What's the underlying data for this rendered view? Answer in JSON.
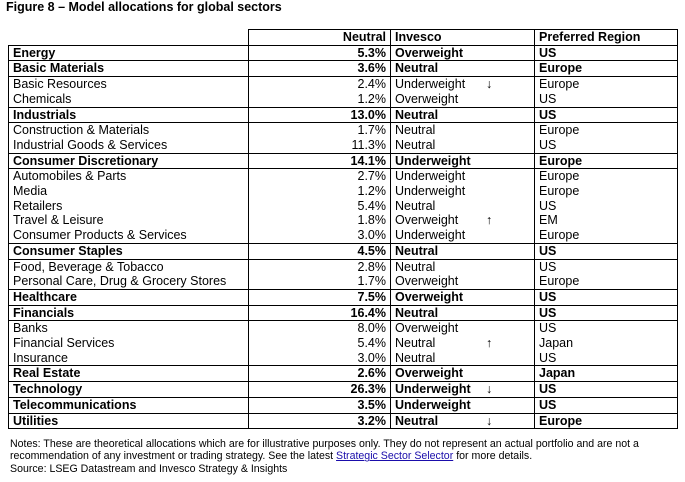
{
  "title": "Figure 8 – Model allocations for global sectors",
  "table": {
    "headers": [
      "Neutral",
      "Invesco",
      "Preferred Region"
    ],
    "rows": [
      {
        "name": "Energy",
        "neutral": "5.3%",
        "invesco": "Overweight",
        "region": "US",
        "bold": true
      },
      {
        "name": "Basic Materials",
        "neutral": "3.6%",
        "invesco": "Neutral",
        "region": "Europe",
        "bold": true
      },
      {
        "name": "Basic Resources",
        "neutral": "2.4%",
        "invesco": "Underweight",
        "arrow": "↓",
        "region": "Europe",
        "bold": false
      },
      {
        "name": "Chemicals",
        "neutral": "1.2%",
        "invesco": "Overweight",
        "region": "US",
        "bold": false
      },
      {
        "name": "Industrials",
        "neutral": "13.0%",
        "invesco": "Neutral",
        "region": "US",
        "bold": true
      },
      {
        "name": "Construction & Materials",
        "neutral": "1.7%",
        "invesco": "Neutral",
        "region": "Europe",
        "bold": false
      },
      {
        "name": "Industrial Goods & Services",
        "neutral": "11.3%",
        "invesco": "Neutral",
        "region": "US",
        "bold": false
      },
      {
        "name": "Consumer Discretionary",
        "neutral": "14.1%",
        "invesco": "Underweight",
        "region": "Europe",
        "bold": true
      },
      {
        "name": "Automobiles & Parts",
        "neutral": "2.7%",
        "invesco": "Underweight",
        "region": "Europe",
        "bold": false
      },
      {
        "name": "Media",
        "neutral": "1.2%",
        "invesco": "Underweight",
        "region": "Europe",
        "bold": false
      },
      {
        "name": "Retailers",
        "neutral": "5.4%",
        "invesco": "Neutral",
        "region": "US",
        "bold": false
      },
      {
        "name": "Travel & Leisure",
        "neutral": "1.8%",
        "invesco": "Overweight",
        "arrow": "↑",
        "region": "EM",
        "bold": false
      },
      {
        "name": "Consumer Products & Services",
        "neutral": "3.0%",
        "invesco": "Underweight",
        "region": "Europe",
        "bold": false
      },
      {
        "name": "Consumer Staples",
        "neutral": "4.5%",
        "invesco": "Neutral",
        "region": "US",
        "bold": true
      },
      {
        "name": "Food, Beverage & Tobacco",
        "neutral": "2.8%",
        "invesco": "Neutral",
        "region": "US",
        "bold": false
      },
      {
        "name": "Personal Care, Drug & Grocery Stores",
        "neutral": "1.7%",
        "invesco": "Overweight",
        "region": "Europe",
        "bold": false
      },
      {
        "name": "Healthcare",
        "neutral": "7.5%",
        "invesco": "Overweight",
        "region": "US",
        "bold": true
      },
      {
        "name": "Financials",
        "neutral": "16.4%",
        "invesco": "Neutral",
        "region": "US",
        "bold": true
      },
      {
        "name": "Banks",
        "neutral": "8.0%",
        "invesco": "Overweight",
        "region": "US",
        "bold": false
      },
      {
        "name": "Financial Services",
        "neutral": "5.4%",
        "invesco": "Neutral",
        "arrow": "↑",
        "region": "Japan",
        "bold": false
      },
      {
        "name": "Insurance",
        "neutral": "3.0%",
        "invesco": "Neutral",
        "region": "US",
        "bold": false
      },
      {
        "name": "Real Estate",
        "neutral": "2.6%",
        "invesco": "Overweight",
        "region": "Japan",
        "bold": true
      },
      {
        "name": "Technology",
        "neutral": "26.3%",
        "invesco": "Underweight",
        "arrow": "↓",
        "region": "US",
        "bold": true
      },
      {
        "name": "Telecommunications",
        "neutral": "3.5%",
        "invesco": "Underweight",
        "region": "US",
        "bold": true
      },
      {
        "name": "Utilities",
        "neutral": "3.2%",
        "invesco": "Neutral",
        "arrow": "↓",
        "region": "Europe",
        "bold": true
      }
    ]
  },
  "notes": {
    "before_link": "Notes: These are theoretical allocations which are for illustrative purposes only. They do not represent an actual portfolio and are not a recommendation of any investment or trading strategy. See the latest",
    "link": "Strategic Sector Selector",
    "after_link": "for more details.",
    "source": "Source: LSEG Datastream and Invesco Strategy & Insights"
  }
}
